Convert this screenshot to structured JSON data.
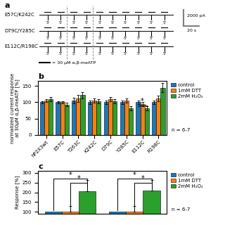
{
  "chart_data": [
    {
      "type": "traces",
      "title": "a",
      "categories": [
        "E57C/K242C",
        "D79C/Y285C",
        "E112C/R198C"
      ],
      "annotations": {
        "scale_y": "2000 pA",
        "scale_x": "20 s",
        "stimulus": "= 30 μM α,β-meATP",
        "pulse": "5'"
      },
      "tick_labels": false
    },
    {
      "type": "bar",
      "title": "b",
      "categories": [
        "hP2X3wt",
        "E57C",
        "T263C",
        "K242C",
        "D79C",
        "Y285C",
        "E112C",
        "R198C"
      ],
      "ylabel": "normalized current response\nat 30μM α,β-meATP [%]",
      "ylim": [
        0,
        165
      ],
      "yticks": [
        0,
        50,
        100,
        150
      ],
      "series": [
        {
          "name": "control",
          "values": [
            100,
            100,
            105,
            100,
            100,
            100,
            100,
            100
          ],
          "errors": [
            4,
            4,
            8,
            5,
            5,
            5,
            5,
            6
          ]
        },
        {
          "name": "1mM DTT",
          "values": [
            105,
            100,
            112,
            105,
            110,
            105,
            95,
            112
          ],
          "errors": [
            5,
            4,
            10,
            6,
            6,
            6,
            6,
            8
          ]
        },
        {
          "name": "2mM H₂O₂",
          "values": [
            110,
            93,
            122,
            103,
            103,
            82,
            82,
            145
          ],
          "errors": [
            6,
            5,
            10,
            7,
            7,
            6,
            7,
            15
          ]
        }
      ],
      "legend": "right",
      "annotations": [
        {
          "text": "n = 6-7"
        },
        {
          "text": "*",
          "category_index": 6,
          "from_series": 0,
          "to_series": 2,
          "y": 91
        }
      ]
    },
    {
      "type": "bar",
      "title": "c",
      "categories": [
        null,
        null
      ],
      "ylabel": "Response [%]",
      "ylim": [
        90,
        310
      ],
      "yticks": [
        100,
        150,
        200,
        250,
        300
      ],
      "tick_labels": "y",
      "series": [
        {
          "name": "control",
          "values": [
            100,
            100
          ]
        },
        {
          "name": "1mM DTT",
          "values": [
            100,
            100
          ],
          "errors_upper": [
            30,
            30
          ]
        },
        {
          "name": "2mM H₂O₂",
          "values": [
            205,
            210
          ],
          "errors_upper": [
            60,
            55
          ]
        }
      ],
      "legend": "right",
      "annotations": [
        {
          "text": "n = 6-7"
        },
        {
          "text": "*",
          "category_index": 0,
          "from_series": 0,
          "to_series": 2,
          "y": 270
        },
        {
          "text": "*",
          "category_index": 0,
          "from_series": 1,
          "to_series": 2,
          "y": 250
        },
        {
          "text": "*",
          "category_index": 1,
          "from_series": 0,
          "to_series": 2,
          "y": 270
        },
        {
          "text": "*",
          "category_index": 1,
          "from_series": 1,
          "to_series": 2,
          "y": 250
        }
      ]
    }
  ]
}
